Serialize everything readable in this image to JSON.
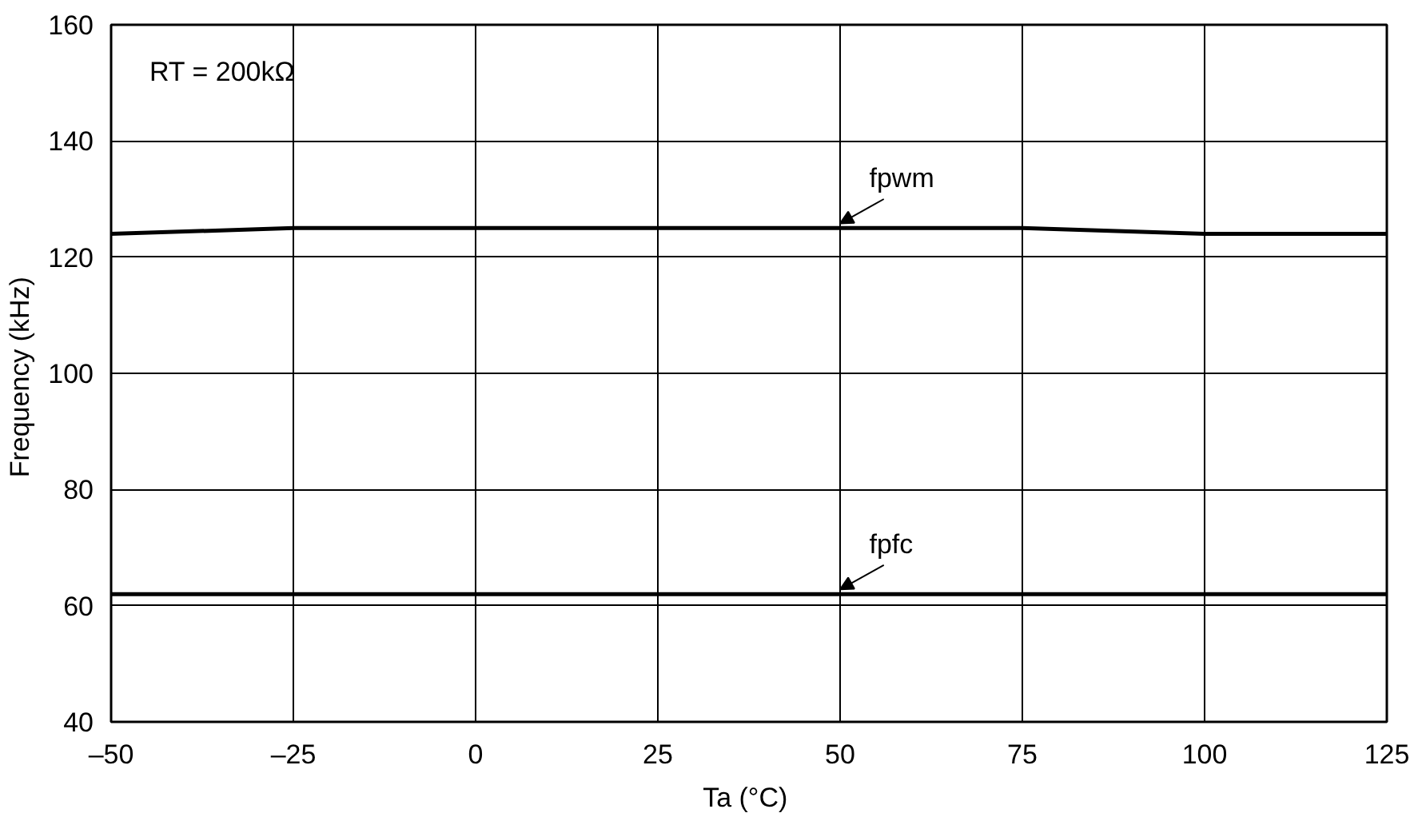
{
  "chart_data": {
    "type": "line",
    "xlabel": "Ta  (°C)",
    "ylabel": "Frequency  (kHz)",
    "series": [
      {
        "color": "#000000",
        "x": [
          -50,
          -25,
          75,
          100,
          125
        ],
        "values": [
          124,
          125,
          125,
          124,
          124
        ]
      },
      {
        "color": "#000000",
        "x": [
          -50,
          125
        ],
        "values": [
          62,
          62
        ]
      }
    ],
    "xlim": [
      -50,
      125
    ],
    "ylim": [
      40,
      160
    ],
    "xticks": [
      {
        "value": -50,
        "label": "–50"
      },
      {
        "value": -25,
        "label": "–25"
      },
      0,
      25,
      50,
      75,
      100,
      125
    ],
    "yticks": [
      40,
      60,
      80,
      100,
      120,
      140,
      160
    ],
    "grid": true,
    "marker": "none",
    "line_style": "solid",
    "annotations": [
      {
        "text": "fpwm",
        "x": 50,
        "y": 125
      },
      {
        "text": "fpfc",
        "x": 50,
        "y": 62
      },
      "RT = 200kΩ"
    ]
  }
}
